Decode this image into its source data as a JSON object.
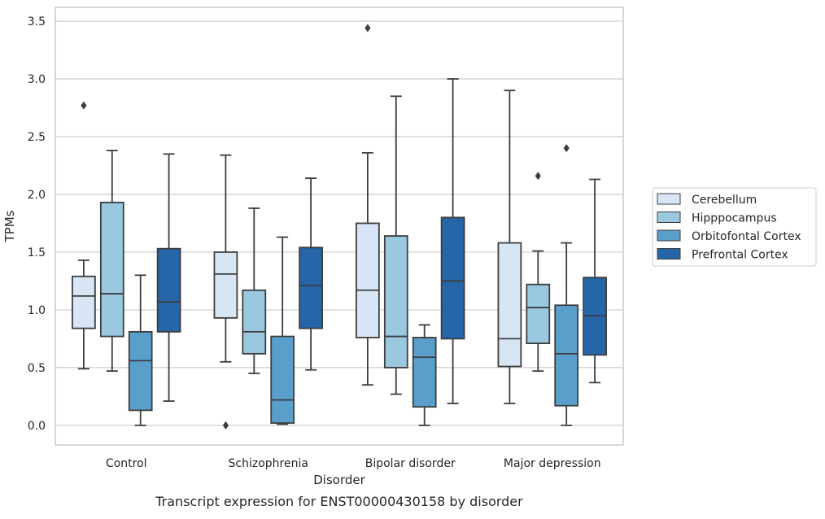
{
  "chart_data": {
    "type": "boxplot",
    "title": "",
    "caption": "Transcript expression for ENST00000430158 by disorder",
    "xlabel": "Disorder",
    "ylabel": "TPMs",
    "ylim": [
      -0.17,
      3.62
    ],
    "yticks": [
      0.0,
      0.5,
      1.0,
      1.5,
      2.0,
      2.5,
      3.0,
      3.5
    ],
    "ytick_labels": [
      "0.0",
      "0.5",
      "1.0",
      "1.5",
      "2.0",
      "2.5",
      "3.0",
      "3.5"
    ],
    "grid": "horizontal",
    "legend_placement": "right",
    "categories": [
      "Control",
      "Schizophrenia",
      "Bipolar disorder",
      "Major depression"
    ],
    "series": [
      {
        "name": "Cerebellum",
        "color": "#d6e6f4",
        "boxes": [
          {
            "whislo": 0.49,
            "q1": 0.84,
            "med": 1.12,
            "q3": 1.29,
            "whishi": 1.43,
            "fliers": [
              2.77
            ]
          },
          {
            "whislo": 0.55,
            "q1": 0.93,
            "med": 1.31,
            "q3": 1.5,
            "whishi": 2.34,
            "fliers": [
              0.0
            ]
          },
          {
            "whislo": 0.35,
            "q1": 0.76,
            "med": 1.17,
            "q3": 1.75,
            "whishi": 2.36,
            "fliers": [
              3.44
            ]
          },
          {
            "whislo": 0.19,
            "q1": 0.51,
            "med": 0.75,
            "q3": 1.58,
            "whishi": 2.9,
            "fliers": []
          }
        ]
      },
      {
        "name": "Hipppocampus",
        "color": "#9ac8e0",
        "boxes": [
          {
            "whislo": 0.47,
            "q1": 0.77,
            "med": 1.14,
            "q3": 1.93,
            "whishi": 2.38,
            "fliers": []
          },
          {
            "whislo": 0.45,
            "q1": 0.62,
            "med": 0.81,
            "q3": 1.17,
            "whishi": 1.88,
            "fliers": []
          },
          {
            "whislo": 0.27,
            "q1": 0.5,
            "med": 0.77,
            "q3": 1.64,
            "whishi": 2.85,
            "fliers": []
          },
          {
            "whislo": 0.47,
            "q1": 0.71,
            "med": 1.02,
            "q3": 1.22,
            "whishi": 1.51,
            "fliers": [
              2.16
            ]
          }
        ]
      },
      {
        "name": "Orbitofontal Cortex",
        "color": "#5a9fcc",
        "boxes": [
          {
            "whislo": 0.0,
            "q1": 0.13,
            "med": 0.56,
            "q3": 0.81,
            "whishi": 1.3,
            "fliers": []
          },
          {
            "whislo": 0.01,
            "q1": 0.02,
            "med": 0.22,
            "q3": 0.77,
            "whishi": 1.63,
            "fliers": []
          },
          {
            "whislo": 0.0,
            "q1": 0.16,
            "med": 0.59,
            "q3": 0.76,
            "whishi": 0.87,
            "fliers": []
          },
          {
            "whislo": 0.0,
            "q1": 0.17,
            "med": 0.62,
            "q3": 1.04,
            "whishi": 1.58,
            "fliers": [
              2.4
            ]
          }
        ]
      },
      {
        "name": "Prefrontal Cortex",
        "color": "#2565a8",
        "boxes": [
          {
            "whislo": 0.21,
            "q1": 0.81,
            "med": 1.07,
            "q3": 1.53,
            "whishi": 2.35,
            "fliers": []
          },
          {
            "whislo": 0.48,
            "q1": 0.84,
            "med": 1.21,
            "q3": 1.54,
            "whishi": 2.14,
            "fliers": []
          },
          {
            "whislo": 0.19,
            "q1": 0.75,
            "med": 1.25,
            "q3": 1.8,
            "whishi": 3.0,
            "fliers": []
          },
          {
            "whislo": 0.37,
            "q1": 0.61,
            "med": 0.95,
            "q3": 1.28,
            "whishi": 2.13,
            "fliers": []
          }
        ]
      }
    ]
  },
  "colors": {
    "grid": "#cccccc",
    "frame": "#cccccc",
    "box_edge": "#3d3d3d",
    "text": "#262626"
  }
}
